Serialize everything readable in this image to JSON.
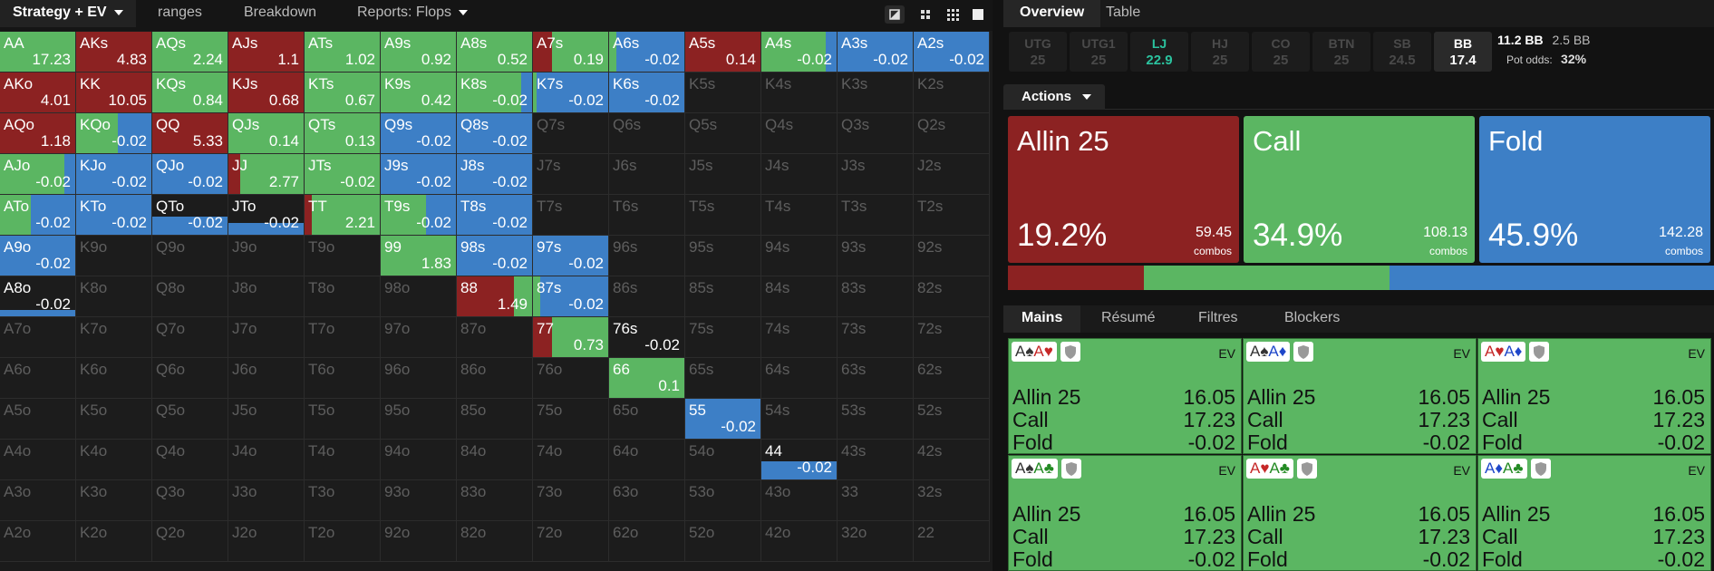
{
  "left_tabs": [
    "Strategy + EV",
    "ranges",
    "Breakdown",
    "Reports: Flops"
  ],
  "matrix": {
    "rows": [
      [
        {
          "hand": "AA",
          "ev": 17.23,
          "mix": [
            0,
            100,
            0
          ],
          "weight": 100
        },
        {
          "hand": "AKs",
          "ev": 4.83,
          "mix": [
            100,
            0,
            0
          ],
          "weight": 100
        },
        {
          "hand": "AQs",
          "ev": 2.24,
          "mix": [
            0,
            100,
            0
          ],
          "weight": 100
        },
        {
          "hand": "AJs",
          "ev": 1.1,
          "mix": [
            100,
            0,
            0
          ],
          "weight": 100
        },
        {
          "hand": "ATs",
          "ev": 1.02,
          "mix": [
            0,
            100,
            0
          ],
          "weight": 100
        },
        {
          "hand": "A9s",
          "ev": 0.92,
          "mix": [
            0,
            100,
            0
          ],
          "weight": 100
        },
        {
          "hand": "A8s",
          "ev": 0.52,
          "mix": [
            0,
            100,
            0
          ],
          "weight": 100
        },
        {
          "hand": "A7s",
          "ev": 0.19,
          "mix": [
            25,
            75,
            0
          ],
          "weight": 100
        },
        {
          "hand": "A6s",
          "ev": -0.02,
          "mix": [
            0,
            10,
            90
          ],
          "weight": 100
        },
        {
          "hand": "A5s",
          "ev": 0.14,
          "mix": [
            100,
            0,
            0
          ],
          "weight": 100
        },
        {
          "hand": "A4s",
          "ev": -0.02,
          "mix": [
            0,
            85,
            15
          ],
          "weight": 100
        },
        {
          "hand": "A3s",
          "ev": -0.02,
          "mix": [
            0,
            0,
            100
          ],
          "weight": 100
        },
        {
          "hand": "A2s",
          "ev": -0.02,
          "mix": [
            0,
            0,
            100
          ],
          "weight": 100
        }
      ],
      [
        {
          "hand": "AKo",
          "ev": 4.01,
          "mix": [
            100,
            0,
            0
          ],
          "weight": 100
        },
        {
          "hand": "KK",
          "ev": 10.05,
          "mix": [
            100,
            0,
            0
          ],
          "weight": 100
        },
        {
          "hand": "KQs",
          "ev": 0.84,
          "mix": [
            0,
            100,
            0
          ],
          "weight": 100
        },
        {
          "hand": "KJs",
          "ev": 0.68,
          "mix": [
            100,
            0,
            0
          ],
          "weight": 100
        },
        {
          "hand": "KTs",
          "ev": 0.67,
          "mix": [
            0,
            100,
            0
          ],
          "weight": 100
        },
        {
          "hand": "K9s",
          "ev": 0.42,
          "mix": [
            0,
            100,
            0
          ],
          "weight": 100
        },
        {
          "hand": "K8s",
          "ev": -0.02,
          "mix": [
            0,
            85,
            15
          ],
          "weight": 100
        },
        {
          "hand": "K7s",
          "ev": -0.02,
          "mix": [
            0,
            5,
            95
          ],
          "weight": 100
        },
        {
          "hand": "K6s",
          "ev": -0.02,
          "mix": [
            0,
            0,
            100
          ],
          "weight": 100
        },
        {
          "hand": "K5s"
        },
        {
          "hand": "K4s"
        },
        {
          "hand": "K3s"
        },
        {
          "hand": "K2s"
        }
      ],
      [
        {
          "hand": "AQo",
          "ev": 1.18,
          "mix": [
            100,
            0,
            0
          ],
          "weight": 100
        },
        {
          "hand": "KQo",
          "ev": -0.02,
          "mix": [
            0,
            55,
            45
          ],
          "weight": 100
        },
        {
          "hand": "QQ",
          "ev": 5.33,
          "mix": [
            100,
            0,
            0
          ],
          "weight": 100
        },
        {
          "hand": "QJs",
          "ev": 0.14,
          "mix": [
            0,
            100,
            0
          ],
          "weight": 100
        },
        {
          "hand": "QTs",
          "ev": 0.13,
          "mix": [
            0,
            100,
            0
          ],
          "weight": 100
        },
        {
          "hand": "Q9s",
          "ev": -0.02,
          "mix": [
            0,
            0,
            100
          ],
          "weight": 100
        },
        {
          "hand": "Q8s",
          "ev": -0.02,
          "mix": [
            0,
            0,
            100
          ],
          "weight": 100
        },
        {
          "hand": "Q7s"
        },
        {
          "hand": "Q6s"
        },
        {
          "hand": "Q5s"
        },
        {
          "hand": "Q4s"
        },
        {
          "hand": "Q3s"
        },
        {
          "hand": "Q2s"
        }
      ],
      [
        {
          "hand": "AJo",
          "ev": -0.02,
          "mix": [
            0,
            85,
            15
          ],
          "weight": 100
        },
        {
          "hand": "KJo",
          "ev": -0.02,
          "mix": [
            0,
            0,
            100
          ],
          "weight": 100
        },
        {
          "hand": "QJo",
          "ev": -0.02,
          "mix": [
            0,
            0,
            100
          ],
          "weight": 100
        },
        {
          "hand": "JJ",
          "ev": 2.77,
          "mix": [
            15,
            85,
            0
          ],
          "weight": 100
        },
        {
          "hand": "JTs",
          "ev": -0.02,
          "mix": [
            0,
            100,
            0
          ],
          "weight": 100
        },
        {
          "hand": "J9s",
          "ev": -0.02,
          "mix": [
            0,
            0,
            100
          ],
          "weight": 100
        },
        {
          "hand": "J8s",
          "ev": -0.02,
          "mix": [
            0,
            0,
            100
          ],
          "weight": 100
        },
        {
          "hand": "J7s"
        },
        {
          "hand": "J6s"
        },
        {
          "hand": "J5s"
        },
        {
          "hand": "J4s"
        },
        {
          "hand": "J3s"
        },
        {
          "hand": "J2s"
        }
      ],
      [
        {
          "hand": "ATo",
          "ev": -0.02,
          "mix": [
            0,
            40,
            60
          ],
          "weight": 100
        },
        {
          "hand": "KTo",
          "ev": -0.02,
          "mix": [
            0,
            0,
            100
          ],
          "weight": 100
        },
        {
          "hand": "QTo",
          "ev": -0.02,
          "mix": [
            0,
            0,
            100
          ],
          "weight": 45
        },
        {
          "hand": "JTo",
          "ev": -0.02,
          "mix": [
            0,
            0,
            100
          ],
          "weight": 30
        },
        {
          "hand": "TT",
          "ev": 2.21,
          "mix": [
            10,
            90,
            0
          ],
          "weight": 100
        },
        {
          "hand": "T9s",
          "ev": -0.02,
          "mix": [
            0,
            60,
            40
          ],
          "weight": 100
        },
        {
          "hand": "T8s",
          "ev": -0.02,
          "mix": [
            0,
            0,
            100
          ],
          "weight": 100
        },
        {
          "hand": "T7s"
        },
        {
          "hand": "T6s"
        },
        {
          "hand": "T5s"
        },
        {
          "hand": "T4s"
        },
        {
          "hand": "T3s"
        },
        {
          "hand": "T2s"
        }
      ],
      [
        {
          "hand": "A9o",
          "ev": -0.02,
          "mix": [
            0,
            0,
            100
          ],
          "weight": 100
        },
        {
          "hand": "K9o"
        },
        {
          "hand": "Q9o"
        },
        {
          "hand": "J9o"
        },
        {
          "hand": "T9o"
        },
        {
          "hand": "99",
          "ev": 1.83,
          "mix": [
            0,
            100,
            0
          ],
          "weight": 100
        },
        {
          "hand": "98s",
          "ev": -0.02,
          "mix": [
            0,
            0,
            100
          ],
          "weight": 100
        },
        {
          "hand": "97s",
          "ev": -0.02,
          "mix": [
            0,
            0,
            100
          ],
          "weight": 100
        },
        {
          "hand": "96s"
        },
        {
          "hand": "95s"
        },
        {
          "hand": "94s"
        },
        {
          "hand": "93s"
        },
        {
          "hand": "92s"
        }
      ],
      [
        {
          "hand": "A8o",
          "ev": -0.02,
          "mix": [
            0,
            0,
            100
          ],
          "weight": 15
        },
        {
          "hand": "K8o"
        },
        {
          "hand": "Q8o"
        },
        {
          "hand": "J8o"
        },
        {
          "hand": "T8o"
        },
        {
          "hand": "98o"
        },
        {
          "hand": "88",
          "ev": 1.49,
          "mix": [
            75,
            25,
            0
          ],
          "weight": 100
        },
        {
          "hand": "87s",
          "ev": -0.02,
          "mix": [
            0,
            10,
            90
          ],
          "weight": 100
        },
        {
          "hand": "86s"
        },
        {
          "hand": "85s"
        },
        {
          "hand": "84s"
        },
        {
          "hand": "83s"
        },
        {
          "hand": "82s"
        }
      ],
      [
        {
          "hand": "A7o"
        },
        {
          "hand": "K7o"
        },
        {
          "hand": "Q7o"
        },
        {
          "hand": "J7o"
        },
        {
          "hand": "T7o"
        },
        {
          "hand": "97o"
        },
        {
          "hand": "87o"
        },
        {
          "hand": "77",
          "ev": 0.73,
          "mix": [
            25,
            75,
            0
          ],
          "weight": 100
        },
        {
          "hand": "76s",
          "ev": -0.02,
          "mix": [
            0,
            0,
            100
          ],
          "weight": 0
        },
        {
          "hand": "75s"
        },
        {
          "hand": "74s"
        },
        {
          "hand": "73s"
        },
        {
          "hand": "72s"
        }
      ],
      [
        {
          "hand": "A6o"
        },
        {
          "hand": "K6o"
        },
        {
          "hand": "Q6o"
        },
        {
          "hand": "J6o"
        },
        {
          "hand": "T6o"
        },
        {
          "hand": "96o"
        },
        {
          "hand": "86o"
        },
        {
          "hand": "76o"
        },
        {
          "hand": "66",
          "ev": 0.1,
          "mix": [
            0,
            100,
            0
          ],
          "weight": 100
        },
        {
          "hand": "65s"
        },
        {
          "hand": "64s"
        },
        {
          "hand": "63s"
        },
        {
          "hand": "62s"
        }
      ],
      [
        {
          "hand": "A5o"
        },
        {
          "hand": "K5o"
        },
        {
          "hand": "Q5o"
        },
        {
          "hand": "J5o"
        },
        {
          "hand": "T5o"
        },
        {
          "hand": "95o"
        },
        {
          "hand": "85o"
        },
        {
          "hand": "75o"
        },
        {
          "hand": "65o"
        },
        {
          "hand": "55",
          "ev": -0.02,
          "mix": [
            0,
            0,
            100
          ],
          "weight": 100
        },
        {
          "hand": "54s"
        },
        {
          "hand": "53s"
        },
        {
          "hand": "52s"
        }
      ],
      [
        {
          "hand": "A4o"
        },
        {
          "hand": "K4o"
        },
        {
          "hand": "Q4o"
        },
        {
          "hand": "J4o"
        },
        {
          "hand": "T4o"
        },
        {
          "hand": "94o"
        },
        {
          "hand": "84o"
        },
        {
          "hand": "74o"
        },
        {
          "hand": "64o"
        },
        {
          "hand": "54o"
        },
        {
          "hand": "44",
          "ev": -0.02,
          "mix": [
            0,
            0,
            100
          ],
          "weight": 45
        },
        {
          "hand": "43s"
        },
        {
          "hand": "42s"
        }
      ],
      [
        {
          "hand": "A3o"
        },
        {
          "hand": "K3o"
        },
        {
          "hand": "Q3o"
        },
        {
          "hand": "J3o"
        },
        {
          "hand": "T3o"
        },
        {
          "hand": "93o"
        },
        {
          "hand": "83o"
        },
        {
          "hand": "73o"
        },
        {
          "hand": "63o"
        },
        {
          "hand": "53o"
        },
        {
          "hand": "43o"
        },
        {
          "hand": "33"
        },
        {
          "hand": "32s"
        }
      ],
      [
        {
          "hand": "A2o"
        },
        {
          "hand": "K2o"
        },
        {
          "hand": "Q2o"
        },
        {
          "hand": "J2o"
        },
        {
          "hand": "T2o"
        },
        {
          "hand": "92o"
        },
        {
          "hand": "82o"
        },
        {
          "hand": "72o"
        },
        {
          "hand": "62o"
        },
        {
          "hand": "52o"
        },
        {
          "hand": "42o"
        },
        {
          "hand": "32o"
        },
        {
          "hand": "22"
        }
      ]
    ]
  },
  "right_tabs": [
    "Overview",
    "Table"
  ],
  "positions": [
    {
      "name": "UTG",
      "stack": 25,
      "color": "#4a4a4a",
      "background": "#1c1c1c"
    },
    {
      "name": "UTG1",
      "stack": 25,
      "color": "#4a4a4a",
      "background": "#1c1c1c"
    },
    {
      "name": "LJ",
      "stack": 22.9,
      "color": "#2bc39f",
      "background": "#1c1c1c"
    },
    {
      "name": "HJ",
      "stack": 25,
      "color": "#4a4a4a",
      "background": "#1c1c1c"
    },
    {
      "name": "CO",
      "stack": 25,
      "color": "#4a4a4a",
      "background": "#1c1c1c"
    },
    {
      "name": "BTN",
      "stack": 25,
      "color": "#4a4a4a",
      "background": "#1c1c1c"
    },
    {
      "name": "SB",
      "stack": 24.5,
      "color": "#4a4a4a",
      "background": "#1c1c1c"
    },
    {
      "name": "BB",
      "stack": 17.4,
      "color": "#ffffff",
      "background": "#2a2a2a"
    }
  ],
  "pot": {
    "pot_size": "11.2 BB",
    "to_call": "2.5 BB",
    "pot_odds_label": "Pot odds:",
    "pot_odds": "32%"
  },
  "actions_menu": "Actions",
  "actions": [
    {
      "name": "Allin 25",
      "pct": 19.2,
      "pct_label": "19.2%",
      "combos": 59.45,
      "combos_label": "combos",
      "color": "#8c2222"
    },
    {
      "name": "Call",
      "pct": 34.9,
      "pct_label": "34.9%",
      "combos": 108.13,
      "combos_label": "combos",
      "color": "#5bb662"
    },
    {
      "name": "Fold",
      "pct": 45.9,
      "pct_label": "45.9%",
      "combos": 142.28,
      "combos_label": "combos",
      "color": "#3d7fc6"
    }
  ],
  "hand_tabs": [
    "Mains",
    "Résumé",
    "Filtres",
    "Blockers"
  ],
  "hands": [
    {
      "cards": [
        "A♠",
        "A♥"
      ],
      "ev_label": "EV",
      "rows": [
        {
          "action": "Allin 25",
          "ev": 16.05
        },
        {
          "action": "Call",
          "ev": 17.23
        },
        {
          "action": "Fold",
          "ev": -0.02
        }
      ]
    },
    {
      "cards": [
        "A♠",
        "A♦"
      ],
      "ev_label": "EV",
      "rows": [
        {
          "action": "Allin 25",
          "ev": 16.05
        },
        {
          "action": "Call",
          "ev": 17.23
        },
        {
          "action": "Fold",
          "ev": -0.02
        }
      ]
    },
    {
      "cards": [
        "A♥",
        "A♦"
      ],
      "ev_label": "EV",
      "rows": [
        {
          "action": "Allin 25",
          "ev": 16.05
        },
        {
          "action": "Call",
          "ev": 17.23
        },
        {
          "action": "Fold",
          "ev": -0.02
        }
      ]
    },
    {
      "cards": [
        "A♠",
        "A♣"
      ],
      "ev_label": "EV",
      "rows": [
        {
          "action": "Allin 25",
          "ev": 16.05
        },
        {
          "action": "Call",
          "ev": 17.23
        },
        {
          "action": "Fold",
          "ev": -0.02
        }
      ]
    },
    {
      "cards": [
        "A♥",
        "A♣"
      ],
      "ev_label": "EV",
      "rows": [
        {
          "action": "Allin 25",
          "ev": 16.05
        },
        {
          "action": "Call",
          "ev": 17.23
        },
        {
          "action": "Fold",
          "ev": -0.02
        }
      ]
    },
    {
      "cards": [
        "A♦",
        "A♣"
      ],
      "ev_label": "EV",
      "rows": [
        {
          "action": "Allin 25",
          "ev": 16.05
        },
        {
          "action": "Call",
          "ev": 17.23
        },
        {
          "action": "Fold",
          "ev": -0.02
        }
      ]
    }
  ]
}
